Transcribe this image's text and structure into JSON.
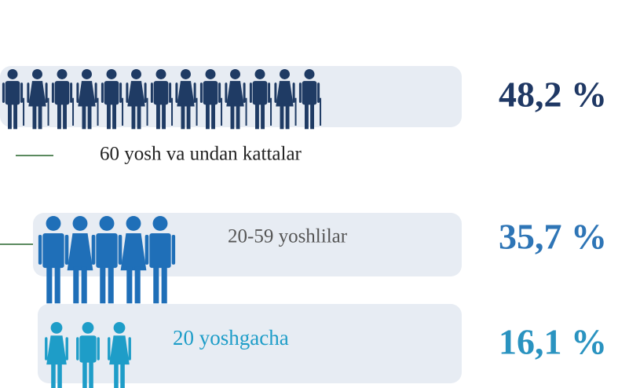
{
  "groups": [
    {
      "label": "60 yosh va undan kattalar",
      "share": "48,2 %"
    },
    {
      "label": "20-59 yoshlilar",
      "share": "35,7 %"
    },
    {
      "label": "20 yoshgacha",
      "share": "16,1 %"
    }
  ]
}
